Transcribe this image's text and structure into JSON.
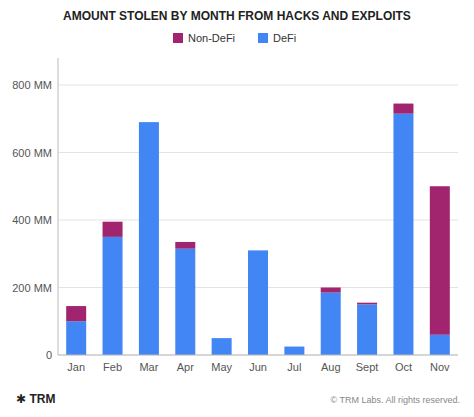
{
  "chart_data": {
    "type": "bar",
    "title": "AMOUNT STOLEN BY MONTH FROM HACKS AND EXPLOITS",
    "categories": [
      "Jan",
      "Feb",
      "Mar",
      "Apr",
      "May",
      "Jun",
      "Jul",
      "Aug",
      "Sept",
      "Oct",
      "Nov"
    ],
    "series": [
      {
        "name": "DeFi",
        "color": "#4285F4",
        "values": [
          100,
          350,
          690,
          315,
          50,
          310,
          25,
          185,
          150,
          715,
          60
        ]
      },
      {
        "name": "Non-DeFi",
        "color": "#A0256E",
        "values": [
          45,
          45,
          0,
          20,
          0,
          0,
          0,
          15,
          5,
          30,
          440
        ]
      }
    ],
    "stacked": true,
    "ylim": [
      0,
      880
    ],
    "yticks": [
      0,
      {
        "value": 200,
        "label": "200 MM"
      },
      {
        "value": 400,
        "label": "400 MM"
      },
      {
        "value": 600,
        "label": "600 MM"
      },
      {
        "value": 800,
        "label": "800 MM"
      }
    ],
    "grid": true,
    "legend": "top",
    "annotations": [
      "✱ TRM",
      "© TRM Labs. All rights reserved."
    ]
  }
}
